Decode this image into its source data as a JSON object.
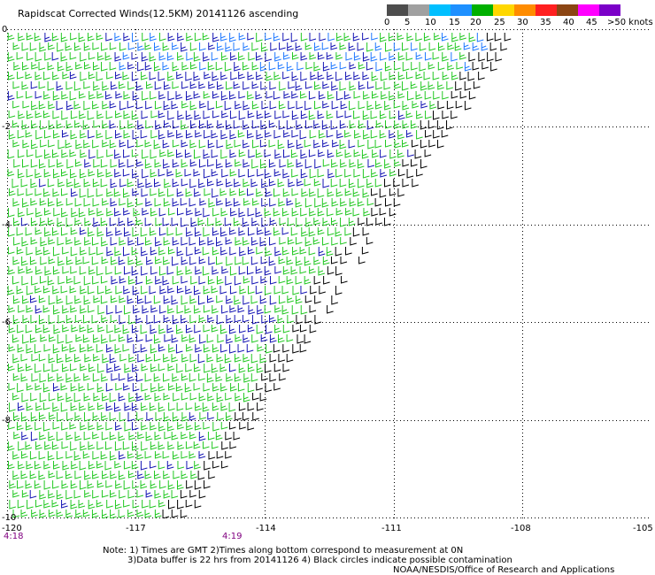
{
  "title": "Rapidscat Corrected Winds(12.5KM) 20141126 ascending",
  "legend": {
    "labels": [
      "0",
      "5",
      "10",
      "15",
      "20",
      "25",
      "30",
      "35",
      "40",
      "45",
      ">50 knots"
    ],
    "colors": [
      "#4d4d4d",
      "#a0a0a0",
      "#00bfff",
      "#1e90ff",
      "#00b000",
      "#ffd700",
      "#ff8c00",
      "#ff2020",
      "#8b4513",
      "#ff00ff",
      "#7b00c8"
    ]
  },
  "axes": {
    "y_ticks": [
      "0",
      "-2",
      "-4",
      "-6",
      "-8",
      "-10"
    ],
    "x_ticks": [
      "-120",
      "-117",
      "-114",
      "-111",
      "-108",
      "-105"
    ]
  },
  "times": [
    "4:18",
    "4:19"
  ],
  "notes": {
    "line1": "Note: 1) Times are GMT 2)Times along bottom correspond to measurement at 0N",
    "line2": "3)Data buffer is 22 hrs from 20141126 4) Black circles indicate possible contamination",
    "credit": "NOAA/NESDIS/Office of Research and Applications"
  },
  "wind_colors": {
    "black": "#000000",
    "green": "#22c822",
    "blue": "#1414b4",
    "light_blue": "#1e78ff"
  }
}
